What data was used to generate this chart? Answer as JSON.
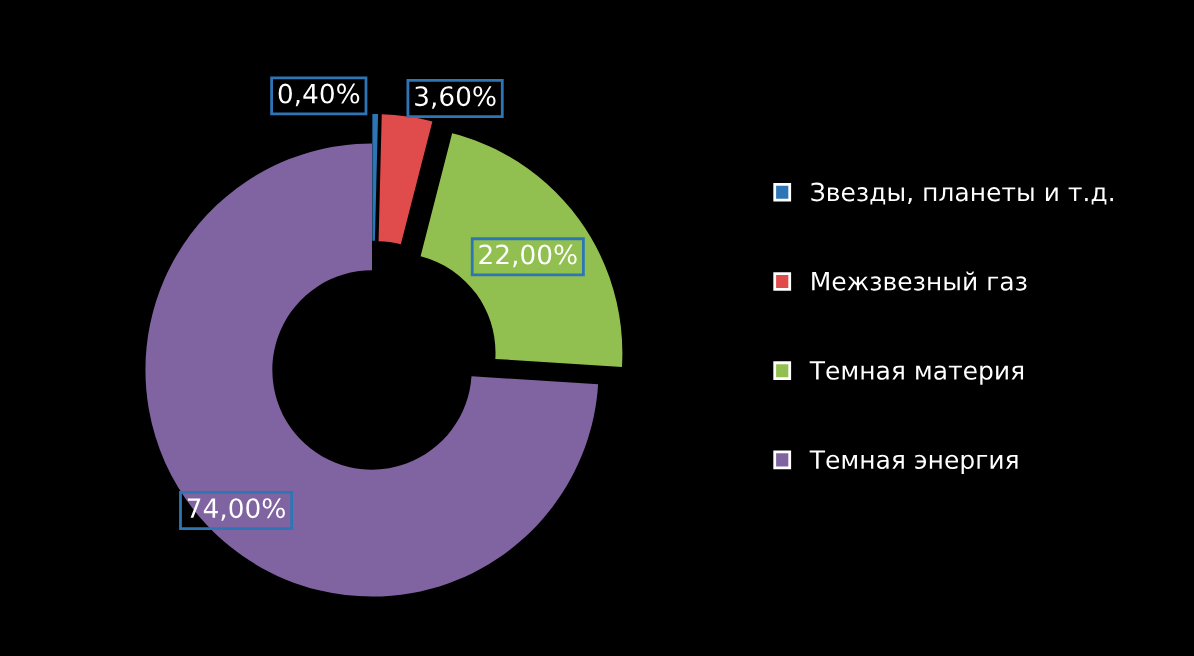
{
  "chart_data": {
    "type": "donut",
    "categories": [
      "Звезды, планеты и т.д.",
      "Межзвезный газ",
      "Темная материя",
      "Темная энергия"
    ],
    "values": [
      0.4,
      3.6,
      22,
      74
    ],
    "colors": [
      "#2e75b6",
      "#e04b4b",
      "#92c050",
      "#8064a2"
    ],
    "value_labels": [
      "0,40%",
      "3,60%",
      "22,00%",
      "74,00%"
    ],
    "legend": "right"
  }
}
